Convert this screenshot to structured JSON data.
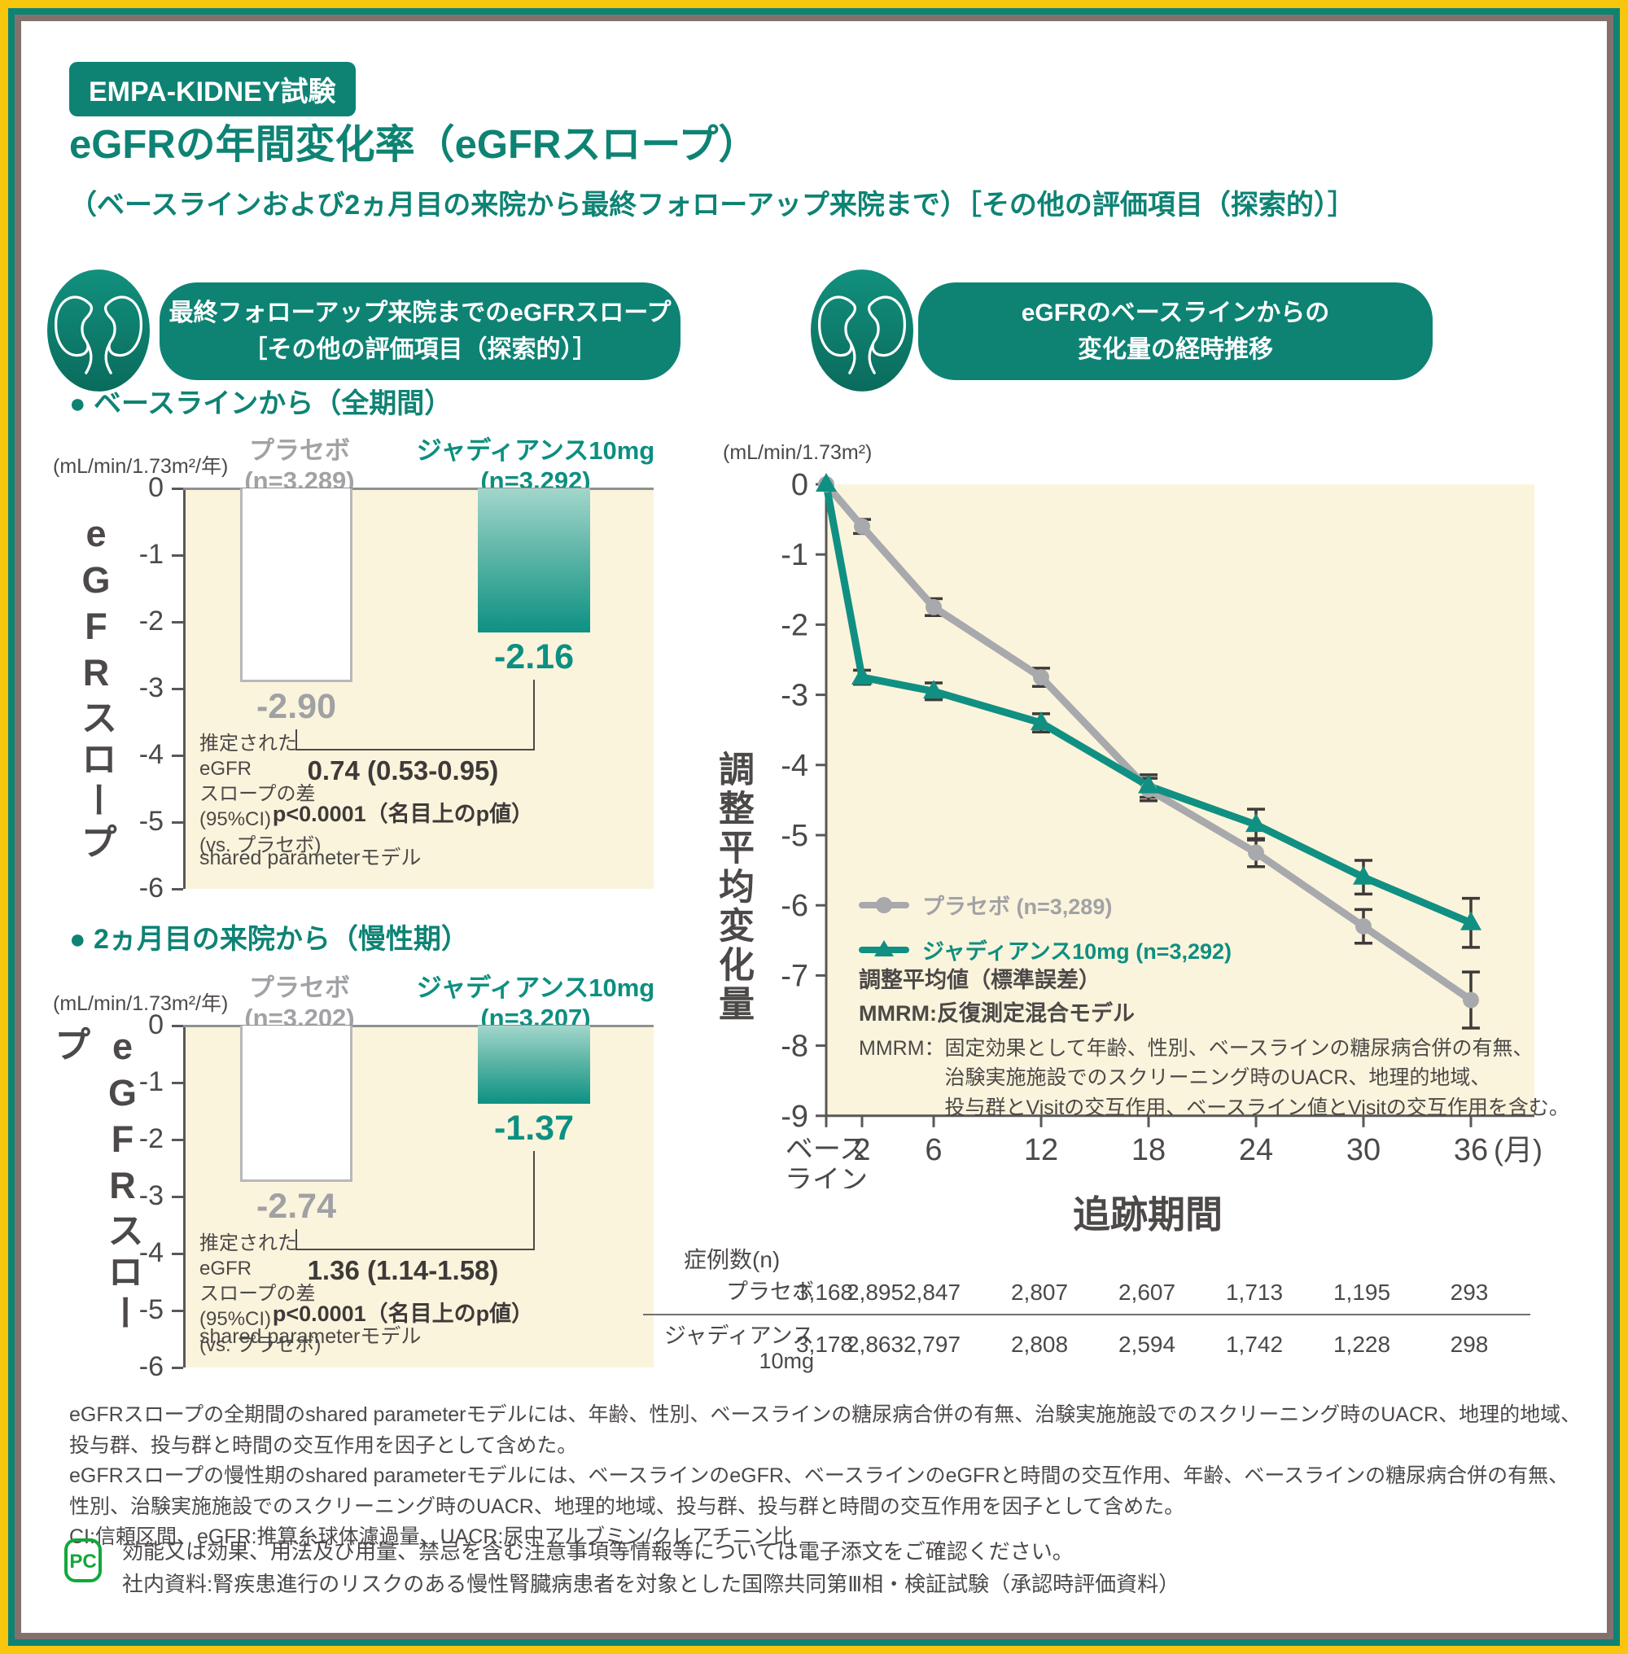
{
  "page": {
    "badge": "EMPA-KIDNEY試験",
    "title": "eGFRの年間変化率（eGFRスロープ）",
    "subtitle": "（ベースラインおよび2ヵ月目の来院から最終フォローアップ来院まで）［その他の評価項目（探索的）］"
  },
  "pills": {
    "left": [
      "最終フォローアップ来院までのeGFRスロープ",
      "［その他の評価項目（探索的）］"
    ],
    "right": [
      "eGFRのベースラインからの",
      "変化量の経時推移"
    ]
  },
  "colors": {
    "accent_teal": "#0e8374",
    "line_teal": "#109082",
    "placebo_gray": "#a7a9ac",
    "cream_background": "#fbf4dc",
    "frame_yellow": "#f7c60d",
    "frame_taupe": "#84716e",
    "dark_text": "#4c4948"
  },
  "chart_data": [
    {
      "id": "egfr-slope-full-period",
      "type": "bar",
      "section_label": "● ベースラインから（全期間）",
      "unit": "(mL/min/1.73m²/年)",
      "ylabel": "eGFRスロープ",
      "ylim": [
        0,
        -6
      ],
      "y_ticks": [
        0,
        -1,
        -2,
        -3,
        -4,
        -5,
        -6
      ],
      "categories": [
        "プラセボ",
        "ジャディアンス10mg"
      ],
      "n_labels": [
        "(n=3,289)",
        "(n=3,292)"
      ],
      "values": [
        -2.9,
        -2.16
      ],
      "value_labels": [
        "-2.90",
        "-2.16"
      ],
      "diff_lines": [
        "推定された",
        "eGFR",
        "スロープの差",
        "(95%CI)",
        "(vs. プラセボ)"
      ],
      "diff_value": "0.74 (0.53-0.95)",
      "p_value": "p<0.0001（名目上のp値）",
      "model": "shared parameterモデル"
    },
    {
      "id": "egfr-slope-chronic-phase",
      "type": "bar",
      "section_label": "● 2ヵ月目の来院から（慢性期）",
      "unit": "(mL/min/1.73m²/年)",
      "ylabel": "eGFRスロープ",
      "ylim": [
        0,
        -6
      ],
      "y_ticks": [
        0,
        -1,
        -2,
        -3,
        -4,
        -5,
        -6
      ],
      "categories": [
        "プラセボ",
        "ジャディアンス10mg"
      ],
      "n_labels": [
        "(n=3,202)",
        "(n=3,207)"
      ],
      "values": [
        -2.74,
        -1.37
      ],
      "value_labels": [
        "-2.74",
        "-1.37"
      ],
      "diff_lines": [
        "推定された",
        "eGFR",
        "スロープの差",
        "(95%CI)",
        "(vs. プラセボ)"
      ],
      "diff_value": "1.36 (1.14-1.58)",
      "p_value": "p<0.0001（名目上のp値）",
      "model": "shared parameterモデル"
    },
    {
      "id": "egfr-change-over-time",
      "type": "line",
      "unit": "(mL/min/1.73m²)",
      "ylabel": "調整平均変化量",
      "xlabel": "追跡期間",
      "ylim": [
        0,
        -9
      ],
      "y_ticks": [
        0,
        -1,
        -2,
        -3,
        -4,
        -5,
        -6,
        -7,
        -8,
        -9
      ],
      "x_baseline_lines": [
        "ベース",
        "ライン"
      ],
      "x_months": [
        2,
        6,
        12,
        18,
        24,
        30,
        36
      ],
      "x_suffix": "(月)",
      "series": [
        {
          "name": "プラセボ",
          "n_label": "(n=3,289)",
          "color": "#a7a9ac",
          "marker": "circle",
          "x": [
            0,
            2,
            6,
            12,
            18,
            24,
            30,
            36
          ],
          "y": [
            0,
            -0.6,
            -1.75,
            -2.75,
            -4.35,
            -5.25,
            -6.3,
            -7.35
          ],
          "se": [
            0,
            0.1,
            0.12,
            0.13,
            0.16,
            0.2,
            0.24,
            0.4
          ]
        },
        {
          "name": "ジャディアンス10mg",
          "n_label": "(n=3,292)",
          "color": "#109082",
          "marker": "triangle",
          "x": [
            0,
            2,
            6,
            12,
            18,
            24,
            30,
            36
          ],
          "y": [
            0,
            -2.75,
            -2.95,
            -3.4,
            -4.3,
            -4.85,
            -5.6,
            -6.25
          ],
          "se": [
            0,
            0.1,
            0.12,
            0.13,
            0.16,
            0.22,
            0.24,
            0.35
          ]
        }
      ],
      "notes_bold": [
        "調整平均値（標準誤差）",
        "MMRM:反復測定混合モデル"
      ],
      "mmrm_label": "MMRM：",
      "mmrm_lines": [
        "固定効果として年齢、性別、ベースラインの糖尿病合併の有無、",
        "治験実施施設でのスクリーニング時のUACR、地理的地域、",
        "投与群とVisitの交互作用、ベースライン値とVisitの交互作用を含む。"
      ],
      "table": {
        "caption": "症例数(n)",
        "rows": [
          {
            "label": "プラセボ",
            "label_lines": [
              "プラセボ"
            ],
            "values": [
              "3,168",
              "2,895",
              "2,847",
              "2,807",
              "2,607",
              "1,713",
              "1,195",
              "293"
            ]
          },
          {
            "label": "ジャディアンス10mg",
            "label_lines": [
              "ジャディアンス",
              "10mg"
            ],
            "values": [
              "3,178",
              "2,863",
              "2,797",
              "2,808",
              "2,594",
              "1,742",
              "1,228",
              "298"
            ]
          }
        ]
      }
    }
  ],
  "footnotes": [
    "eGFRスロープの全期間のshared parameterモデルには、年齢、性別、ベースラインの糖尿病合併の有無、治験実施施設でのスクリーニング時のUACR、地理的地域、投与群、投与群と時間の交互作用を因子として含めた。",
    "eGFRスロープの慢性期のshared parameterモデルには、ベースラインのeGFR、ベースラインのeGFRと時間の交互作用、年齢、ベースラインの糖尿病合併の有無、性別、治験実施施設でのスクリーニング時のUACR、地理的地域、投与群、投与群と時間の交互作用を因子として含めた。",
    "CI:信頼区間、eGFR:推算糸球体濾過量、UACR:尿中アルブミン/クレアチニン比"
  ],
  "bottom": {
    "icon": "pc-package-insert-icon",
    "lines": [
      "効能又は効果、用法及び用量、禁忌を含む注意事項等情報等については電子添文をご確認ください。",
      "社内資料:腎疾患進行のリスクのある慢性腎臓病患者を対象とした国際共同第Ⅲ相・検証試験（承認時評価資料）"
    ]
  }
}
